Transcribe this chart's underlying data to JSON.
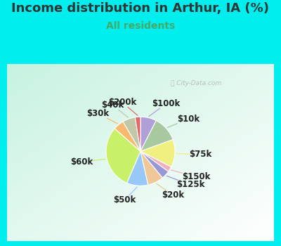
{
  "title": "Income distribution in Arthur, IA (%)",
  "subtitle": "All residents",
  "title_color": "#333333",
  "subtitle_color": "#44aa66",
  "background_color": "#00eeee",
  "watermark": "City-Data.com",
  "slices": [
    {
      "label": "$100k",
      "value": 7.5,
      "color": "#b0a0d8"
    },
    {
      "label": "$10k",
      "value": 12.0,
      "color": "#a8c8a0"
    },
    {
      "label": "$75k",
      "value": 13.0,
      "color": "#f0f080"
    },
    {
      "label": "$150k",
      "value": 2.5,
      "color": "#f0b0c0"
    },
    {
      "label": "$125k",
      "value": 4.0,
      "color": "#9898d8"
    },
    {
      "label": "$20k",
      "value": 7.5,
      "color": "#f0c898"
    },
    {
      "label": "$50k",
      "value": 10.0,
      "color": "#98c8f8"
    },
    {
      "label": "$60k",
      "value": 30.0,
      "color": "#c8f068"
    },
    {
      "label": "$30k",
      "value": 5.0,
      "color": "#f8b870"
    },
    {
      "label": "$40k",
      "value": 6.0,
      "color": "#c0c8a8"
    },
    {
      "label": "$200k",
      "value": 2.5,
      "color": "#e06868"
    }
  ],
  "label_fontsize": 8.5,
  "title_fontsize": 13
}
